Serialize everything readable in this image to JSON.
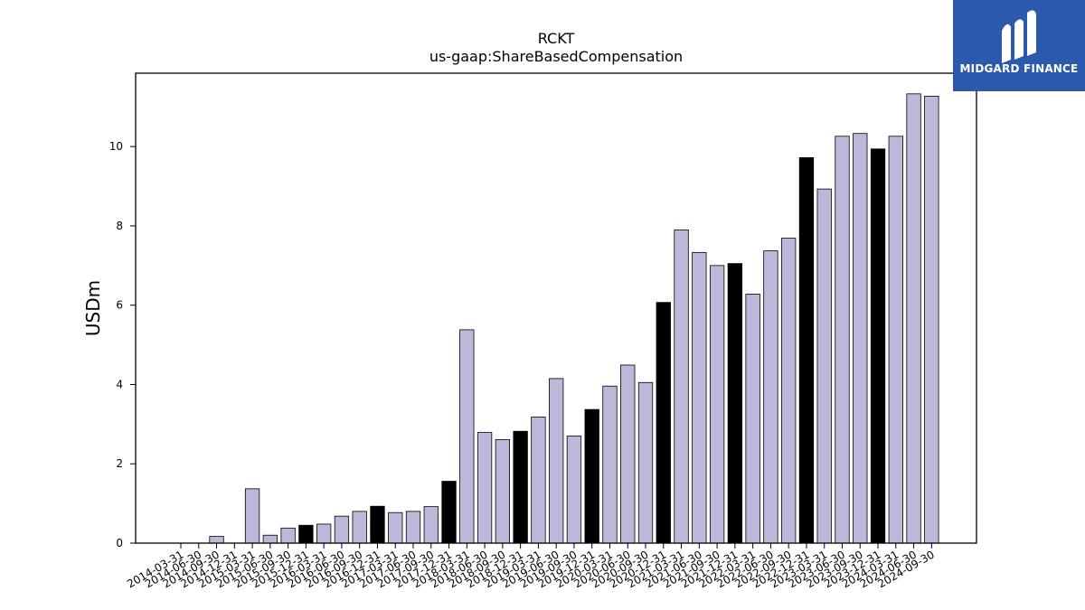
{
  "brand": {
    "name": "MIDGARD FINANCE",
    "color": "#2b5aad",
    "icon": "midgard-logo-icon"
  },
  "chart_data": {
    "type": "bar",
    "title": "RCKT",
    "subtitle": "us-gaap:ShareBasedCompensation",
    "xlabel": "",
    "ylabel": "USDm",
    "ylim": [
      0,
      11.85
    ],
    "yticks": [
      0,
      2,
      4,
      6,
      8,
      10
    ],
    "grid": false,
    "colors": {
      "quarter": "#bcb8d9",
      "annual": "#000000",
      "edge": "#000000"
    },
    "categories": [
      "2014-03-31",
      "2014-06-30",
      "2014-09-30",
      "2014-12-31",
      "2015-03-31",
      "2015-06-30",
      "2015-09-30",
      "2015-12-31",
      "2016-03-31",
      "2016-06-30",
      "2016-09-30",
      "2016-12-31",
      "2017-03-31",
      "2017-06-30",
      "2017-09-30",
      "2017-12-31",
      "2018-03-31",
      "2018-06-30",
      "2018-09-30",
      "2018-12-31",
      "2019-03-31",
      "2019-06-30",
      "2019-09-30",
      "2019-12-31",
      "2020-03-31",
      "2020-06-30",
      "2020-09-30",
      "2020-12-31",
      "2021-03-31",
      "2021-06-30",
      "2021-09-30",
      "2021-12-31",
      "2022-03-31",
      "2022-06-30",
      "2022-09-30",
      "2022-12-31",
      "2023-03-31",
      "2023-06-30",
      "2023-09-30",
      "2023-12-31",
      "2024-03-31",
      "2024-06-30",
      "2024-09-30"
    ],
    "values": [
      0,
      0,
      0.17,
      0,
      1.37,
      0.2,
      0.38,
      0.45,
      0.48,
      0.68,
      0.8,
      0.93,
      0.77,
      0.8,
      0.92,
      1.56,
      5.38,
      2.79,
      2.61,
      2.82,
      3.18,
      4.15,
      2.7,
      3.37,
      3.96,
      4.49,
      4.05,
      6.07,
      7.9,
      7.33,
      7.0,
      7.05,
      6.28,
      7.37,
      7.69,
      9.72,
      8.93,
      10.26,
      10.33,
      9.94,
      10.26,
      11.33,
      11.27
    ],
    "annual_flags": [
      false,
      false,
      false,
      false,
      false,
      false,
      false,
      true,
      false,
      false,
      false,
      true,
      false,
      false,
      false,
      true,
      false,
      false,
      false,
      true,
      false,
      false,
      false,
      true,
      false,
      false,
      false,
      true,
      false,
      false,
      false,
      true,
      false,
      false,
      false,
      true,
      false,
      false,
      false,
      true,
      false,
      false,
      false
    ]
  }
}
